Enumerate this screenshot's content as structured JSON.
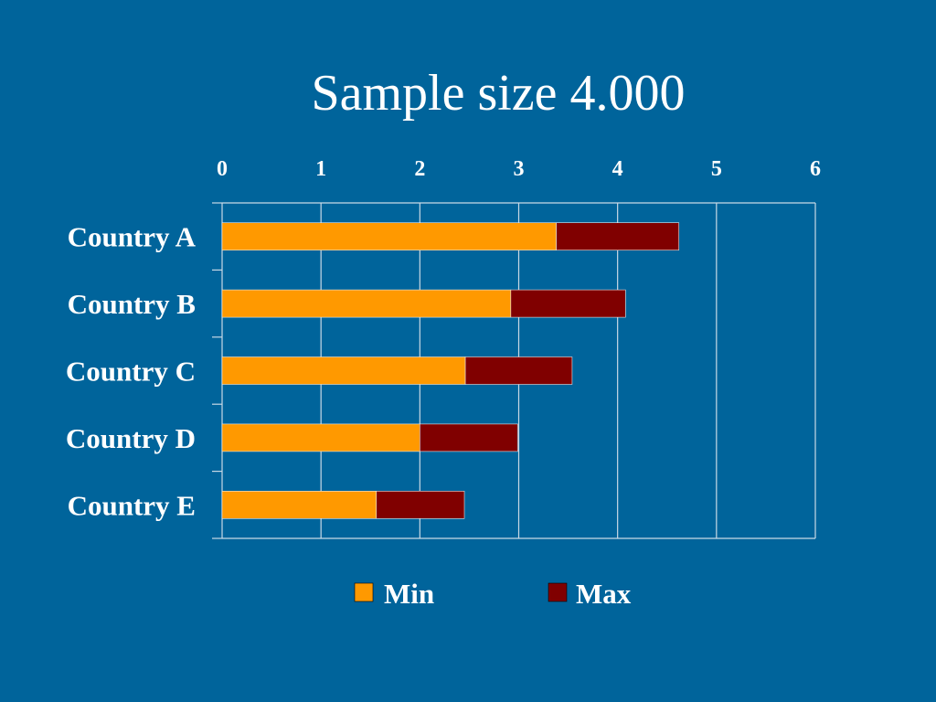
{
  "colors": {
    "background": "#00649b",
    "min": "#ff9900",
    "max": "#800000",
    "grid": "#c9d9e6",
    "text": "#ffffff"
  },
  "chart_data": {
    "type": "bar",
    "orientation": "horizontal",
    "stacked": true,
    "title": "Sample size 4.000",
    "categories": [
      "Country A",
      "Country B",
      "Country C",
      "Country D",
      "Country E"
    ],
    "series": [
      {
        "name": "Min",
        "values": [
          3.38,
          2.92,
          2.46,
          2.0,
          1.56
        ]
      },
      {
        "name": "Max",
        "values": [
          1.24,
          1.16,
          1.08,
          0.99,
          0.89
        ]
      }
    ],
    "xlim": [
      0,
      6
    ],
    "xticks": [
      "0",
      "1",
      "2",
      "3",
      "4",
      "5",
      "6"
    ],
    "x_axis_position": "top",
    "grid": true,
    "legend": "bottom"
  }
}
